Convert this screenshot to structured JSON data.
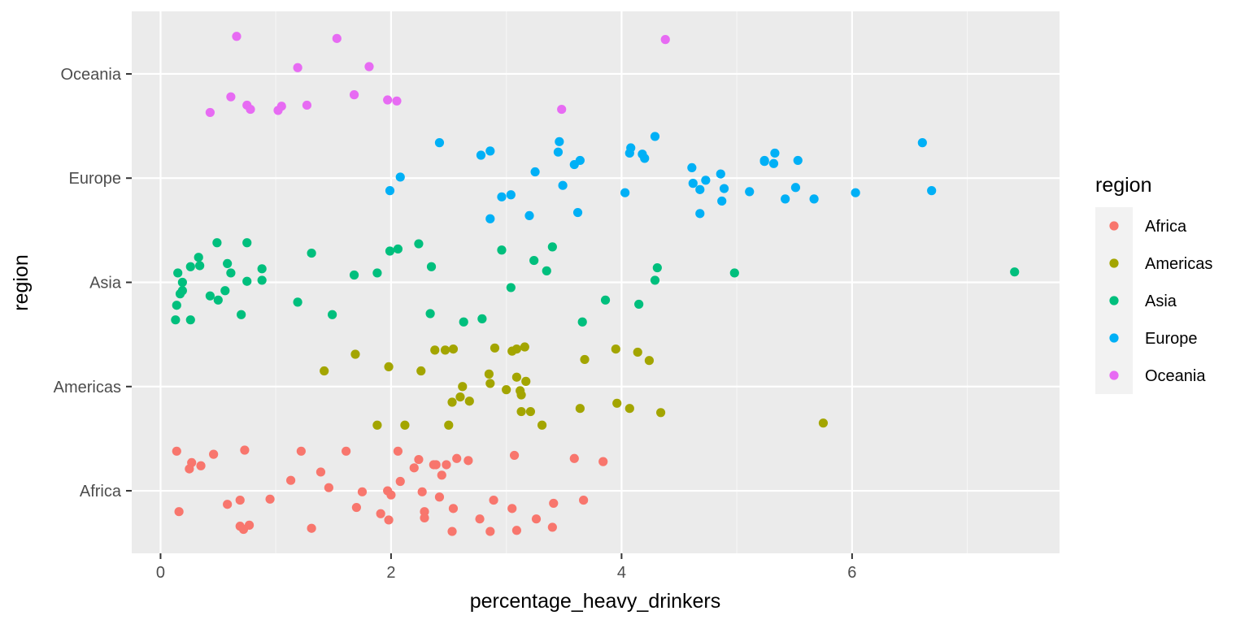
{
  "chart_data": {
    "type": "scatter",
    "title": "",
    "xlabel": "percentage_heavy_drinkers",
    "ylabel": "region",
    "xlim": [
      -0.25,
      7.8
    ],
    "x_ticks": [
      0,
      2,
      4,
      6
    ],
    "x_minor": [
      1,
      3,
      5,
      7
    ],
    "ylim": [
      0.4,
      5.6
    ],
    "categories": [
      "Africa",
      "Americas",
      "Asia",
      "Europe",
      "Oceania"
    ],
    "grid": true,
    "legend_title": "region",
    "legend_position": "right",
    "series": [
      {
        "name": "Africa",
        "color": "#F8766D",
        "points": [
          [
            0.14,
            1.38
          ],
          [
            0.16,
            0.8
          ],
          [
            0.25,
            1.21
          ],
          [
            0.27,
            1.27
          ],
          [
            0.35,
            1.24
          ],
          [
            0.46,
            1.35
          ],
          [
            0.58,
            0.87
          ],
          [
            0.69,
            0.66
          ],
          [
            0.69,
            0.91
          ],
          [
            0.72,
            0.63
          ],
          [
            0.73,
            1.39
          ],
          [
            0.77,
            0.67
          ],
          [
            0.95,
            0.92
          ],
          [
            1.13,
            1.1
          ],
          [
            1.22,
            1.38
          ],
          [
            1.31,
            0.64
          ],
          [
            1.39,
            1.18
          ],
          [
            1.46,
            1.03
          ],
          [
            1.61,
            1.38
          ],
          [
            1.7,
            0.84
          ],
          [
            1.75,
            0.99
          ],
          [
            1.91,
            0.78
          ],
          [
            1.97,
            1.0
          ],
          [
            1.98,
            0.72
          ],
          [
            2.0,
            0.96
          ],
          [
            2.06,
            1.38
          ],
          [
            2.08,
            1.09
          ],
          [
            2.2,
            1.22
          ],
          [
            2.24,
            1.3
          ],
          [
            2.27,
            0.99
          ],
          [
            2.29,
            0.8
          ],
          [
            2.29,
            0.74
          ],
          [
            2.37,
            1.25
          ],
          [
            2.39,
            1.25
          ],
          [
            2.42,
            0.94
          ],
          [
            2.44,
            1.15
          ],
          [
            2.48,
            1.25
          ],
          [
            2.53,
            0.61
          ],
          [
            2.54,
            0.83
          ],
          [
            2.57,
            1.31
          ],
          [
            2.67,
            1.29
          ],
          [
            2.77,
            0.73
          ],
          [
            2.86,
            0.61
          ],
          [
            2.89,
            0.91
          ],
          [
            3.05,
            0.83
          ],
          [
            3.07,
            1.34
          ],
          [
            3.09,
            0.62
          ],
          [
            3.26,
            0.73
          ],
          [
            3.4,
            0.65
          ],
          [
            3.41,
            0.88
          ],
          [
            3.59,
            1.31
          ],
          [
            3.67,
            0.91
          ],
          [
            3.84,
            1.28
          ]
        ]
      },
      {
        "name": "Americas",
        "color": "#A3A500",
        "points": [
          [
            1.42,
            2.15
          ],
          [
            1.69,
            2.31
          ],
          [
            1.88,
            1.63
          ],
          [
            1.98,
            2.19
          ],
          [
            2.12,
            1.63
          ],
          [
            2.26,
            2.15
          ],
          [
            2.38,
            2.35
          ],
          [
            2.47,
            2.35
          ],
          [
            2.5,
            1.63
          ],
          [
            2.53,
            1.85
          ],
          [
            2.54,
            2.36
          ],
          [
            2.6,
            1.9
          ],
          [
            2.62,
            2.0
          ],
          [
            2.68,
            1.86
          ],
          [
            2.85,
            2.12
          ],
          [
            2.86,
            2.03
          ],
          [
            2.9,
            2.37
          ],
          [
            3.0,
            1.97
          ],
          [
            3.05,
            2.34
          ],
          [
            3.09,
            2.09
          ],
          [
            3.09,
            2.36
          ],
          [
            3.12,
            1.96
          ],
          [
            3.13,
            1.92
          ],
          [
            3.13,
            1.76
          ],
          [
            3.16,
            2.38
          ],
          [
            3.17,
            2.05
          ],
          [
            3.21,
            1.76
          ],
          [
            3.31,
            1.63
          ],
          [
            3.64,
            1.79
          ],
          [
            3.68,
            2.26
          ],
          [
            3.95,
            2.36
          ],
          [
            3.96,
            1.84
          ],
          [
            4.07,
            1.79
          ],
          [
            4.14,
            2.33
          ],
          [
            4.24,
            2.25
          ],
          [
            4.34,
            1.75
          ],
          [
            5.75,
            1.65
          ]
        ]
      },
      {
        "name": "Asia",
        "color": "#00BF7D",
        "points": [
          [
            0.13,
            2.64
          ],
          [
            0.14,
            2.78
          ],
          [
            0.15,
            3.09
          ],
          [
            0.17,
            2.89
          ],
          [
            0.19,
            2.92
          ],
          [
            0.19,
            3.0
          ],
          [
            0.26,
            3.15
          ],
          [
            0.26,
            2.64
          ],
          [
            0.33,
            3.24
          ],
          [
            0.34,
            3.16
          ],
          [
            0.43,
            2.87
          ],
          [
            0.49,
            3.38
          ],
          [
            0.5,
            2.83
          ],
          [
            0.56,
            2.92
          ],
          [
            0.58,
            3.18
          ],
          [
            0.61,
            3.09
          ],
          [
            0.7,
            2.69
          ],
          [
            0.75,
            3.38
          ],
          [
            0.75,
            3.01
          ],
          [
            0.88,
            3.13
          ],
          [
            0.88,
            3.02
          ],
          [
            1.19,
            2.81
          ],
          [
            1.31,
            3.28
          ],
          [
            1.49,
            2.69
          ],
          [
            1.68,
            3.07
          ],
          [
            1.88,
            3.09
          ],
          [
            1.99,
            3.3
          ],
          [
            2.06,
            3.32
          ],
          [
            2.24,
            3.37
          ],
          [
            2.34,
            2.7
          ],
          [
            2.35,
            3.15
          ],
          [
            2.63,
            2.62
          ],
          [
            2.79,
            2.65
          ],
          [
            2.96,
            3.31
          ],
          [
            3.04,
            2.95
          ],
          [
            3.24,
            3.21
          ],
          [
            3.35,
            3.11
          ],
          [
            3.4,
            3.34
          ],
          [
            3.66,
            2.62
          ],
          [
            3.86,
            2.83
          ],
          [
            4.15,
            2.79
          ],
          [
            4.29,
            3.02
          ],
          [
            4.31,
            3.14
          ],
          [
            4.98,
            3.09
          ],
          [
            7.41,
            3.1
          ]
        ]
      },
      {
        "name": "Europe",
        "color": "#00B0F6",
        "points": [
          [
            1.99,
            3.88
          ],
          [
            2.08,
            4.01
          ],
          [
            2.42,
            4.34
          ],
          [
            2.78,
            4.22
          ],
          [
            2.86,
            4.26
          ],
          [
            2.86,
            3.61
          ],
          [
            2.96,
            3.82
          ],
          [
            3.04,
            3.84
          ],
          [
            3.2,
            3.64
          ],
          [
            3.25,
            4.06
          ],
          [
            3.45,
            4.25
          ],
          [
            3.46,
            4.35
          ],
          [
            3.49,
            3.93
          ],
          [
            3.59,
            4.13
          ],
          [
            3.62,
            3.67
          ],
          [
            3.64,
            4.17
          ],
          [
            4.03,
            3.86
          ],
          [
            4.07,
            4.24
          ],
          [
            4.08,
            4.29
          ],
          [
            4.18,
            4.23
          ],
          [
            4.2,
            4.19
          ],
          [
            4.29,
            4.4
          ],
          [
            4.61,
            4.1
          ],
          [
            4.62,
            3.95
          ],
          [
            4.68,
            3.89
          ],
          [
            4.68,
            3.66
          ],
          [
            4.73,
            3.98
          ],
          [
            4.86,
            4.04
          ],
          [
            4.87,
            3.78
          ],
          [
            4.89,
            3.9
          ],
          [
            5.11,
            3.87
          ],
          [
            5.24,
            4.17
          ],
          [
            5.24,
            4.16
          ],
          [
            5.32,
            4.14
          ],
          [
            5.33,
            4.24
          ],
          [
            5.42,
            3.8
          ],
          [
            5.51,
            3.91
          ],
          [
            5.53,
            4.17
          ],
          [
            5.67,
            3.8
          ],
          [
            6.03,
            3.86
          ],
          [
            6.61,
            4.34
          ],
          [
            6.69,
            3.88
          ]
        ]
      },
      {
        "name": "Oceania",
        "color": "#E76BF3",
        "points": [
          [
            0.43,
            4.63
          ],
          [
            0.61,
            4.78
          ],
          [
            0.66,
            5.36
          ],
          [
            0.75,
            4.7
          ],
          [
            0.78,
            4.66
          ],
          [
            1.02,
            4.65
          ],
          [
            1.05,
            4.69
          ],
          [
            1.19,
            5.06
          ],
          [
            1.27,
            4.7
          ],
          [
            1.53,
            5.34
          ],
          [
            1.68,
            4.8
          ],
          [
            1.81,
            5.07
          ],
          [
            1.97,
            4.75
          ],
          [
            2.05,
            4.74
          ],
          [
            3.48,
            4.66
          ],
          [
            4.38,
            5.33
          ]
        ]
      }
    ]
  }
}
